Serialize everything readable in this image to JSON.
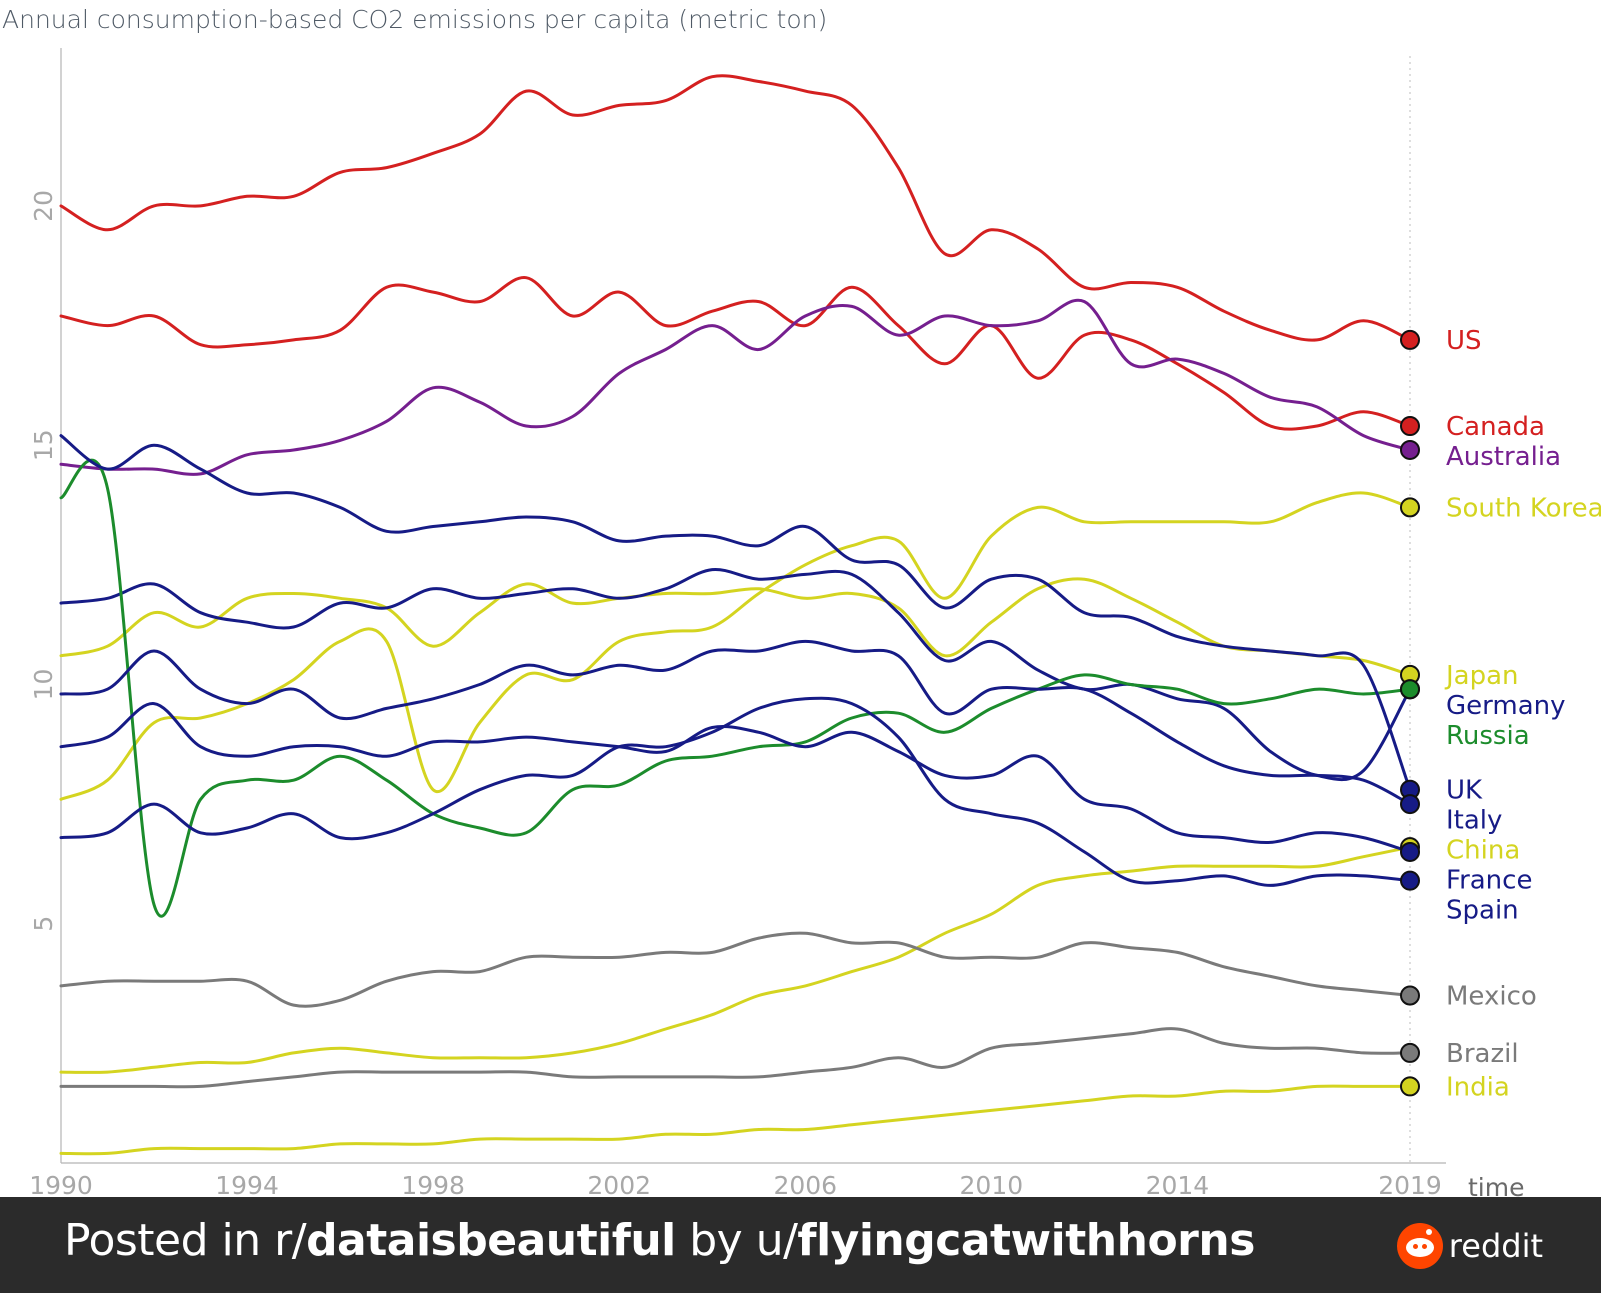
{
  "chart_data": {
    "type": "line",
    "title": "",
    "ylabel": "Annual consumption-based CO2 emissions per capita (metric ton)",
    "xlabel": "time",
    "xlim": [
      1990,
      2019
    ],
    "ylim": [
      0,
      23.3
    ],
    "x_ticks": [
      "1990",
      "1994",
      "1998",
      "2002",
      "2006",
      "2010",
      "2014",
      "2019"
    ],
    "y_ticks": [
      "5",
      "10",
      "15",
      "20"
    ],
    "x": [
      1990,
      1991,
      1992,
      1993,
      1994,
      1995,
      1996,
      1997,
      1998,
      1999,
      2000,
      2001,
      2002,
      2003,
      2004,
      2005,
      2006,
      2007,
      2008,
      2009,
      2010,
      2011,
      2012,
      2013,
      2014,
      2015,
      2016,
      2017,
      2018,
      2019
    ],
    "series": [
      {
        "name": "US",
        "color": "#d42020",
        "values": [
          20.0,
          19.5,
          20.0,
          20.0,
          20.2,
          20.2,
          20.7,
          20.8,
          21.1,
          21.5,
          22.4,
          21.9,
          22.1,
          22.2,
          22.7,
          22.6,
          22.4,
          22.1,
          20.8,
          19.0,
          19.5,
          19.1,
          18.3,
          18.4,
          18.3,
          17.8,
          17.4,
          17.2,
          17.6,
          17.2
        ]
      },
      {
        "name": "Canada",
        "color": "#d42020",
        "values": [
          17.7,
          17.5,
          17.7,
          17.1,
          17.1,
          17.2,
          17.4,
          18.3,
          18.2,
          18.0,
          18.5,
          17.7,
          18.2,
          17.5,
          17.8,
          18.0,
          17.5,
          18.3,
          17.5,
          16.7,
          17.5,
          16.4,
          17.3,
          17.2,
          16.7,
          16.1,
          15.4,
          15.4,
          15.7,
          15.4
        ]
      },
      {
        "name": "Australia",
        "color": "#751f8f",
        "values": [
          14.6,
          14.5,
          14.5,
          14.4,
          14.8,
          14.9,
          15.1,
          15.5,
          16.2,
          15.9,
          15.4,
          15.6,
          16.5,
          17.0,
          17.5,
          17.0,
          17.7,
          17.9,
          17.3,
          17.7,
          17.5,
          17.6,
          18.0,
          16.7,
          16.8,
          16.5,
          16.0,
          15.8,
          15.2,
          14.9
        ]
      },
      {
        "name": "South Korea",
        "color": "#d4d420",
        "values": [
          7.6,
          8.0,
          9.2,
          9.3,
          9.6,
          10.1,
          10.9,
          10.9,
          7.8,
          9.2,
          10.2,
          10.1,
          10.9,
          11.1,
          11.2,
          11.9,
          12.5,
          12.9,
          13.0,
          11.8,
          13.1,
          13.7,
          13.4,
          13.4,
          13.4,
          13.4,
          13.4,
          13.8,
          14.0,
          13.7
        ]
      },
      {
        "name": "Japan",
        "color": "#d4d420",
        "values": [
          10.6,
          10.8,
          11.5,
          11.2,
          11.8,
          11.9,
          11.8,
          11.6,
          10.8,
          11.5,
          12.1,
          11.7,
          11.8,
          11.9,
          11.9,
          12.0,
          11.8,
          11.9,
          11.6,
          10.6,
          11.3,
          12.0,
          12.2,
          11.8,
          11.3,
          10.8,
          10.7,
          10.6,
          10.5,
          10.2
        ]
      },
      {
        "name": "Germany",
        "color": "#161b86",
        "values": [
          11.7,
          11.8,
          12.1,
          11.5,
          11.3,
          11.2,
          11.7,
          11.6,
          12.0,
          11.8,
          11.9,
          12.0,
          11.8,
          12.0,
          12.4,
          12.2,
          12.3,
          12.3,
          11.5,
          10.5,
          10.9,
          10.3,
          9.9,
          10.0,
          9.7,
          9.5,
          8.6,
          8.1,
          8.2,
          9.9
        ]
      },
      {
        "name": "Russia",
        "color": "#1c8c2c",
        "values": [
          13.9,
          14.1,
          5.4,
          7.6,
          8.0,
          8.0,
          8.5,
          8.0,
          7.3,
          7.0,
          6.9,
          7.8,
          7.9,
          8.4,
          8.5,
          8.7,
          8.8,
          9.3,
          9.4,
          9.0,
          9.5,
          9.9,
          10.2,
          10.0,
          9.9,
          9.6,
          9.7,
          9.9,
          9.8,
          9.9
        ]
      },
      {
        "name": "UK",
        "color": "#161b86",
        "values": [
          15.2,
          14.5,
          15.0,
          14.5,
          14.0,
          14.0,
          13.7,
          13.2,
          13.3,
          13.4,
          13.5,
          13.4,
          13.0,
          13.1,
          13.1,
          12.9,
          13.3,
          12.6,
          12.5,
          11.6,
          12.2,
          12.2,
          11.5,
          11.4,
          11.0,
          10.8,
          10.7,
          10.6,
          10.4,
          7.8
        ]
      },
      {
        "name": "Italy",
        "color": "#161b86",
        "values": [
          9.8,
          9.9,
          10.7,
          9.9,
          9.6,
          9.9,
          9.3,
          9.5,
          9.7,
          10.0,
          10.4,
          10.2,
          10.4,
          10.3,
          10.7,
          10.7,
          10.9,
          10.7,
          10.6,
          9.4,
          9.9,
          9.9,
          9.9,
          9.4,
          8.8,
          8.3,
          8.1,
          8.1,
          8.0,
          7.5
        ]
      },
      {
        "name": "China",
        "color": "#d4d420",
        "values": [
          1.9,
          1.9,
          2.0,
          2.1,
          2.1,
          2.3,
          2.4,
          2.3,
          2.2,
          2.2,
          2.2,
          2.3,
          2.5,
          2.8,
          3.1,
          3.5,
          3.7,
          4.0,
          4.3,
          4.8,
          5.2,
          5.8,
          6.0,
          6.1,
          6.2,
          6.2,
          6.2,
          6.2,
          6.4,
          6.6
        ]
      },
      {
        "name": "France",
        "color": "#161b86",
        "values": [
          8.7,
          8.9,
          9.6,
          8.7,
          8.5,
          8.7,
          8.7,
          8.5,
          8.8,
          8.8,
          8.9,
          8.8,
          8.7,
          8.6,
          9.1,
          9.0,
          8.7,
          9.0,
          8.6,
          8.1,
          8.1,
          8.5,
          7.6,
          7.4,
          6.9,
          6.8,
          6.7,
          6.9,
          6.8,
          6.5
        ]
      },
      {
        "name": "Spain",
        "color": "#161b86",
        "values": [
          6.8,
          6.9,
          7.5,
          6.9,
          7.0,
          7.3,
          6.8,
          6.9,
          7.3,
          7.8,
          8.1,
          8.1,
          8.7,
          8.7,
          9.0,
          9.5,
          9.7,
          9.6,
          8.9,
          7.6,
          7.3,
          7.1,
          6.5,
          5.9,
          5.9,
          6.0,
          5.8,
          6.0,
          6.0,
          5.9
        ]
      },
      {
        "name": "Mexico",
        "color": "#7a7a7a",
        "values": [
          3.7,
          3.8,
          3.8,
          3.8,
          3.8,
          3.3,
          3.4,
          3.8,
          4.0,
          4.0,
          4.3,
          4.3,
          4.3,
          4.4,
          4.4,
          4.7,
          4.8,
          4.6,
          4.6,
          4.3,
          4.3,
          4.3,
          4.6,
          4.5,
          4.4,
          4.1,
          3.9,
          3.7,
          3.6,
          3.5
        ]
      },
      {
        "name": "Brazil",
        "color": "#7a7a7a",
        "values": [
          1.6,
          1.6,
          1.6,
          1.6,
          1.7,
          1.8,
          1.9,
          1.9,
          1.9,
          1.9,
          1.9,
          1.8,
          1.8,
          1.8,
          1.8,
          1.8,
          1.9,
          2.0,
          2.2,
          2.0,
          2.4,
          2.5,
          2.6,
          2.7,
          2.8,
          2.5,
          2.4,
          2.4,
          2.3,
          2.3
        ]
      },
      {
        "name": "India",
        "color": "#d4d420",
        "values": [
          0.2,
          0.2,
          0.3,
          0.3,
          0.3,
          0.3,
          0.4,
          0.4,
          0.4,
          0.5,
          0.5,
          0.5,
          0.5,
          0.6,
          0.6,
          0.7,
          0.7,
          0.8,
          0.9,
          1.0,
          1.1,
          1.2,
          1.3,
          1.4,
          1.4,
          1.5,
          1.5,
          1.6,
          1.6,
          1.6
        ]
      }
    ],
    "end_labels": [
      {
        "name": "US",
        "value": 17.2
      },
      {
        "name": "Canada",
        "value": 15.4
      },
      {
        "name": "Australia",
        "value": 14.9
      },
      {
        "name": "South Korea",
        "value": 13.7
      },
      {
        "name": "Japan",
        "value": 10.2
      },
      {
        "name": "Germany",
        "value": 9.9
      },
      {
        "name": "Russia",
        "value": 9.9
      },
      {
        "name": "UK",
        "value": 7.8
      },
      {
        "name": "Italy",
        "value": 7.5
      },
      {
        "name": "China",
        "value": 6.6
      },
      {
        "name": "France",
        "value": 6.5
      },
      {
        "name": "Spain",
        "value": 5.9
      },
      {
        "name": "Mexico",
        "value": 3.5
      },
      {
        "name": "Brazil",
        "value": 2.3
      },
      {
        "name": "India",
        "value": 1.6
      }
    ],
    "grid": false,
    "legend": "none"
  },
  "footer": {
    "prefix": "Posted in r/",
    "subreddit": "dataisbeautiful",
    "middle": " by u/",
    "user": "flyingcatwithhorns",
    "brand": "reddit",
    "brand_icon": "reddit-logo-icon",
    "brand_color": "#ff4500"
  }
}
